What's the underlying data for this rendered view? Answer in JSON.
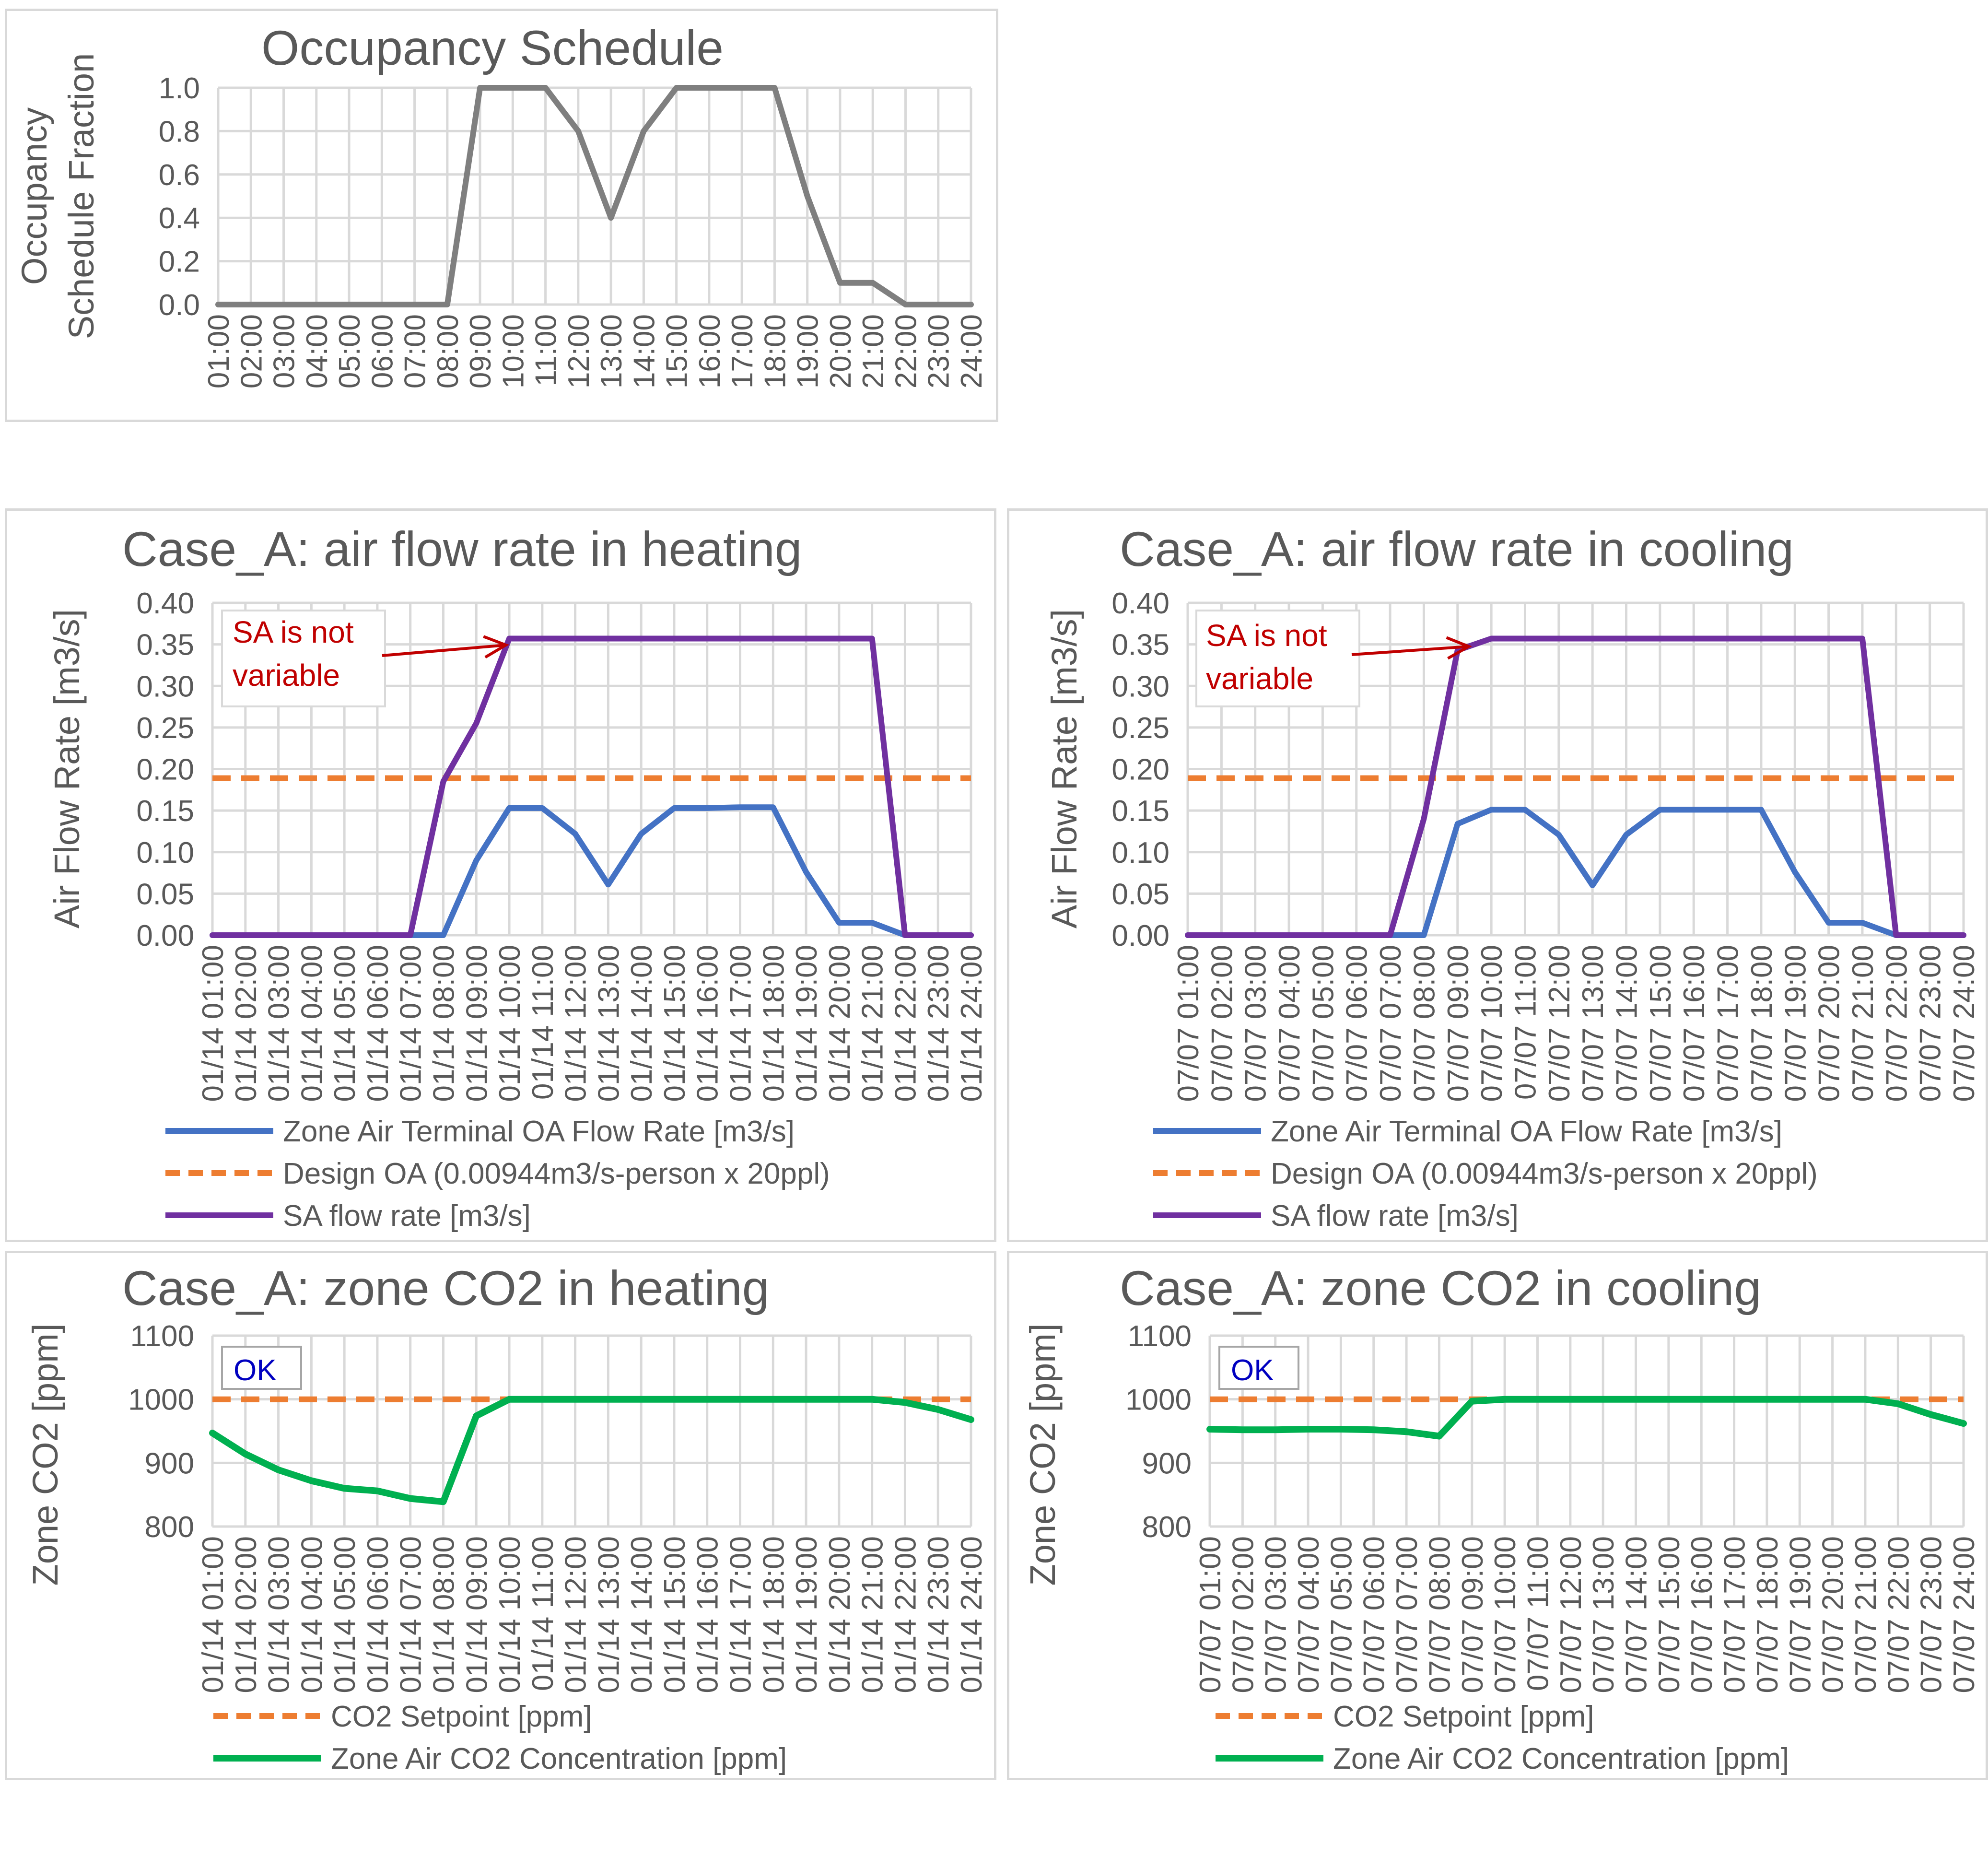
{
  "hours": [
    "01:00",
    "02:00",
    "03:00",
    "04:00",
    "05:00",
    "06:00",
    "07:00",
    "08:00",
    "09:00",
    "10:00",
    "11:00",
    "12:00",
    "13:00",
    "14:00",
    "15:00",
    "16:00",
    "17:00",
    "18:00",
    "19:00",
    "20:00",
    "21:00",
    "22:00",
    "23:00",
    "24:00"
  ],
  "colors": {
    "oa": "#4472c4",
    "design": "#ed7d31",
    "sa": "#7030a0",
    "occ": "#7f7f7f",
    "co2": "#00b050",
    "grid": "#d9d9d9",
    "text": "#595959",
    "annotation": "#c00000",
    "ok": "#0000c0"
  },
  "chart_data": [
    {
      "id": "occ",
      "type": "line",
      "title": "Occupancy Schedule",
      "ylabel_lines": [
        "Occupancy",
        "Schedule Fraction"
      ],
      "xlabel": "",
      "date_prefix": "",
      "ylim": [
        0,
        1.0
      ],
      "yticks": [
        "0.0",
        "0.2",
        "0.4",
        "0.6",
        "0.8",
        "1.0"
      ],
      "grid": true,
      "series": [
        {
          "key": "occ",
          "values": [
            0,
            0,
            0,
            0,
            0,
            0,
            0,
            0,
            1.0,
            1.0,
            1.0,
            0.8,
            0.4,
            0.8,
            1.0,
            1.0,
            1.0,
            1.0,
            0.5,
            0.1,
            0.1,
            0,
            0,
            0
          ]
        }
      ]
    },
    {
      "id": "heat_flow",
      "type": "line",
      "title": "Case_A: air flow rate in heating",
      "ylabel_lines": [
        "Air Flow Rate [m3/s]"
      ],
      "xlabel": "",
      "date_prefix": "01/14",
      "ylim": [
        0,
        0.4
      ],
      "yticks": [
        "0.00",
        "0.05",
        "0.10",
        "0.15",
        "0.20",
        "0.25",
        "0.30",
        "0.35",
        "0.40"
      ],
      "grid": true,
      "annotation": {
        "lines": [
          "SA is not",
          "variable"
        ]
      },
      "series": [
        {
          "key": "oa",
          "name": "Zone Air Terminal OA Flow Rate [m3/s]",
          "values": [
            0,
            0,
            0,
            0,
            0,
            0,
            0,
            0,
            0.09,
            0.153,
            0.153,
            0.122,
            0.061,
            0.122,
            0.153,
            0.153,
            0.154,
            0.154,
            0.076,
            0.015,
            0.015,
            0,
            0,
            0
          ]
        },
        {
          "key": "design",
          "name": "Design OA  (0.00944m3/s-person x 20ppl)",
          "values": [
            0.189,
            0.189,
            0.189,
            0.189,
            0.189,
            0.189,
            0.189,
            0.189,
            0.189,
            0.189,
            0.189,
            0.189,
            0.189,
            0.189,
            0.189,
            0.189,
            0.189,
            0.189,
            0.189,
            0.189,
            0.189,
            0.189,
            0.189,
            0.189
          ]
        },
        {
          "key": "sa",
          "name": "SA flow rate [m3/s]",
          "values": [
            0,
            0,
            0,
            0,
            0,
            0,
            0,
            0.185,
            0.255,
            0.357,
            0.357,
            0.357,
            0.357,
            0.357,
            0.357,
            0.357,
            0.357,
            0.357,
            0.357,
            0.357,
            0.357,
            0,
            0,
            0
          ]
        }
      ]
    },
    {
      "id": "cool_flow",
      "type": "line",
      "title": "Case_A: air flow rate in cooling",
      "ylabel_lines": [
        "Air Flow Rate [m3/s]"
      ],
      "xlabel": "",
      "date_prefix": "07/07",
      "ylim": [
        0,
        0.4
      ],
      "yticks": [
        "0.00",
        "0.05",
        "0.10",
        "0.15",
        "0.20",
        "0.25",
        "0.30",
        "0.35",
        "0.40"
      ],
      "grid": true,
      "annotation": {
        "lines": [
          "SA is not",
          "variable"
        ]
      },
      "series": [
        {
          "key": "oa",
          "name": "Zone Air Terminal OA Flow Rate [m3/s]",
          "values": [
            0,
            0,
            0,
            0,
            0,
            0,
            0,
            0,
            0.134,
            0.151,
            0.151,
            0.121,
            0.06,
            0.121,
            0.151,
            0.151,
            0.151,
            0.151,
            0.076,
            0.015,
            0.015,
            0,
            0,
            0
          ]
        },
        {
          "key": "design",
          "name": "Design OA  (0.00944m3/s-person x 20ppl)",
          "values": [
            0.189,
            0.189,
            0.189,
            0.189,
            0.189,
            0.189,
            0.189,
            0.189,
            0.189,
            0.189,
            0.189,
            0.189,
            0.189,
            0.189,
            0.189,
            0.189,
            0.189,
            0.189,
            0.189,
            0.189,
            0.189,
            0.189,
            0.189,
            0.189
          ]
        },
        {
          "key": "sa",
          "name": "SA flow rate [m3/s]",
          "values": [
            0,
            0,
            0,
            0,
            0,
            0,
            0,
            0.14,
            0.343,
            0.357,
            0.357,
            0.357,
            0.357,
            0.357,
            0.357,
            0.357,
            0.357,
            0.357,
            0.357,
            0.357,
            0.357,
            0,
            0,
            0
          ]
        }
      ]
    },
    {
      "id": "heat_co2",
      "type": "line",
      "title": "Case_A: zone CO2 in heating",
      "ylabel_lines": [
        "Zone CO2 [ppm]"
      ],
      "xlabel": "",
      "date_prefix": "01/14",
      "ylim": [
        800,
        1100
      ],
      "yticks": [
        "800",
        "900",
        "1000",
        "1100"
      ],
      "grid": true,
      "ok_label": "OK",
      "series": [
        {
          "key": "design",
          "name": "CO2 Setpoint [ppm]",
          "values": [
            1000,
            1000,
            1000,
            1000,
            1000,
            1000,
            1000,
            1000,
            1000,
            1000,
            1000,
            1000,
            1000,
            1000,
            1000,
            1000,
            1000,
            1000,
            1000,
            1000,
            1000,
            1000,
            1000,
            1000
          ]
        },
        {
          "key": "co2",
          "name": "Zone Air CO2 Concentration [ppm]",
          "values": [
            947,
            914,
            889,
            872,
            860,
            856,
            844,
            839,
            974,
            1000,
            1000,
            1000,
            1000,
            1000,
            1000,
            1000,
            1000,
            1000,
            1000,
            1000,
            1000,
            995,
            984,
            968
          ]
        }
      ]
    },
    {
      "id": "cool_co2",
      "type": "line",
      "title": "Case_A: zone CO2 in cooling",
      "ylabel_lines": [
        "Zone CO2 [ppm]"
      ],
      "xlabel": "",
      "date_prefix": "07/07",
      "ylim": [
        800,
        1100
      ],
      "yticks": [
        "800",
        "900",
        "1000",
        "1100"
      ],
      "grid": true,
      "ok_label": "OK",
      "series": [
        {
          "key": "design",
          "name": "CO2 Setpoint [ppm]",
          "values": [
            1000,
            1000,
            1000,
            1000,
            1000,
            1000,
            1000,
            1000,
            1000,
            1000,
            1000,
            1000,
            1000,
            1000,
            1000,
            1000,
            1000,
            1000,
            1000,
            1000,
            1000,
            1000,
            1000,
            1000
          ]
        },
        {
          "key": "co2",
          "name": "Zone Air CO2 Concentration [ppm]",
          "values": [
            953,
            952,
            952,
            953,
            953,
            952,
            949,
            942,
            997,
            1000,
            1000,
            1000,
            1000,
            1000,
            1000,
            1000,
            1000,
            1000,
            1000,
            1000,
            1000,
            993,
            976,
            962
          ]
        }
      ]
    }
  ]
}
